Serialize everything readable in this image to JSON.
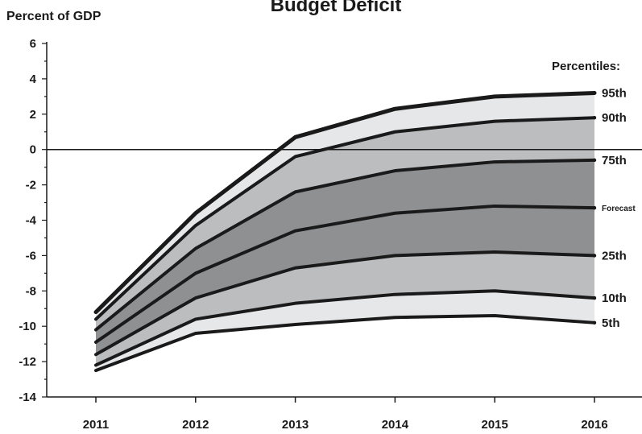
{
  "chart_data": {
    "type": "area",
    "title": "Budget Deficit",
    "ylabel": "Percent of GDP",
    "xlabel": "",
    "legend_title": "Percentiles:",
    "x": [
      2011,
      2012,
      2013,
      2014,
      2015,
      2016
    ],
    "xticks": [
      "2011",
      "2012",
      "2013",
      "2014",
      "2015",
      "2016"
    ],
    "ylim": [
      -14,
      6
    ],
    "yticks": [
      "6",
      "4",
      "2",
      "0",
      "-2",
      "-4",
      "-6",
      "-8",
      "-10",
      "-12",
      "-14"
    ],
    "reference_line": 0,
    "series": [
      {
        "name": "95th",
        "values": [
          -9.2,
          -3.6,
          0.7,
          2.3,
          3.0,
          3.2
        ]
      },
      {
        "name": "90th",
        "values": [
          -9.6,
          -4.3,
          -0.4,
          1.0,
          1.6,
          1.8
        ]
      },
      {
        "name": "75th",
        "values": [
          -10.2,
          -5.6,
          -2.4,
          -1.2,
          -0.7,
          -0.6
        ]
      },
      {
        "name": "Forecast",
        "values": [
          -10.9,
          -7.0,
          -4.6,
          -3.6,
          -3.2,
          -3.3
        ]
      },
      {
        "name": "25th",
        "values": [
          -11.6,
          -8.4,
          -6.7,
          -6.0,
          -5.8,
          -6.0
        ]
      },
      {
        "name": "10th",
        "values": [
          -12.2,
          -9.6,
          -8.7,
          -8.2,
          -8.0,
          -8.4
        ]
      },
      {
        "name": "5th",
        "values": [
          -12.5,
          -10.4,
          -9.9,
          -9.5,
          -9.4,
          -9.8
        ]
      }
    ],
    "band_colors": {
      "outer": "#e6e7e8",
      "middle": "#bcbdbf",
      "inner": "#8f9092"
    },
    "line_color": "#1a1a1a",
    "grid": false
  }
}
